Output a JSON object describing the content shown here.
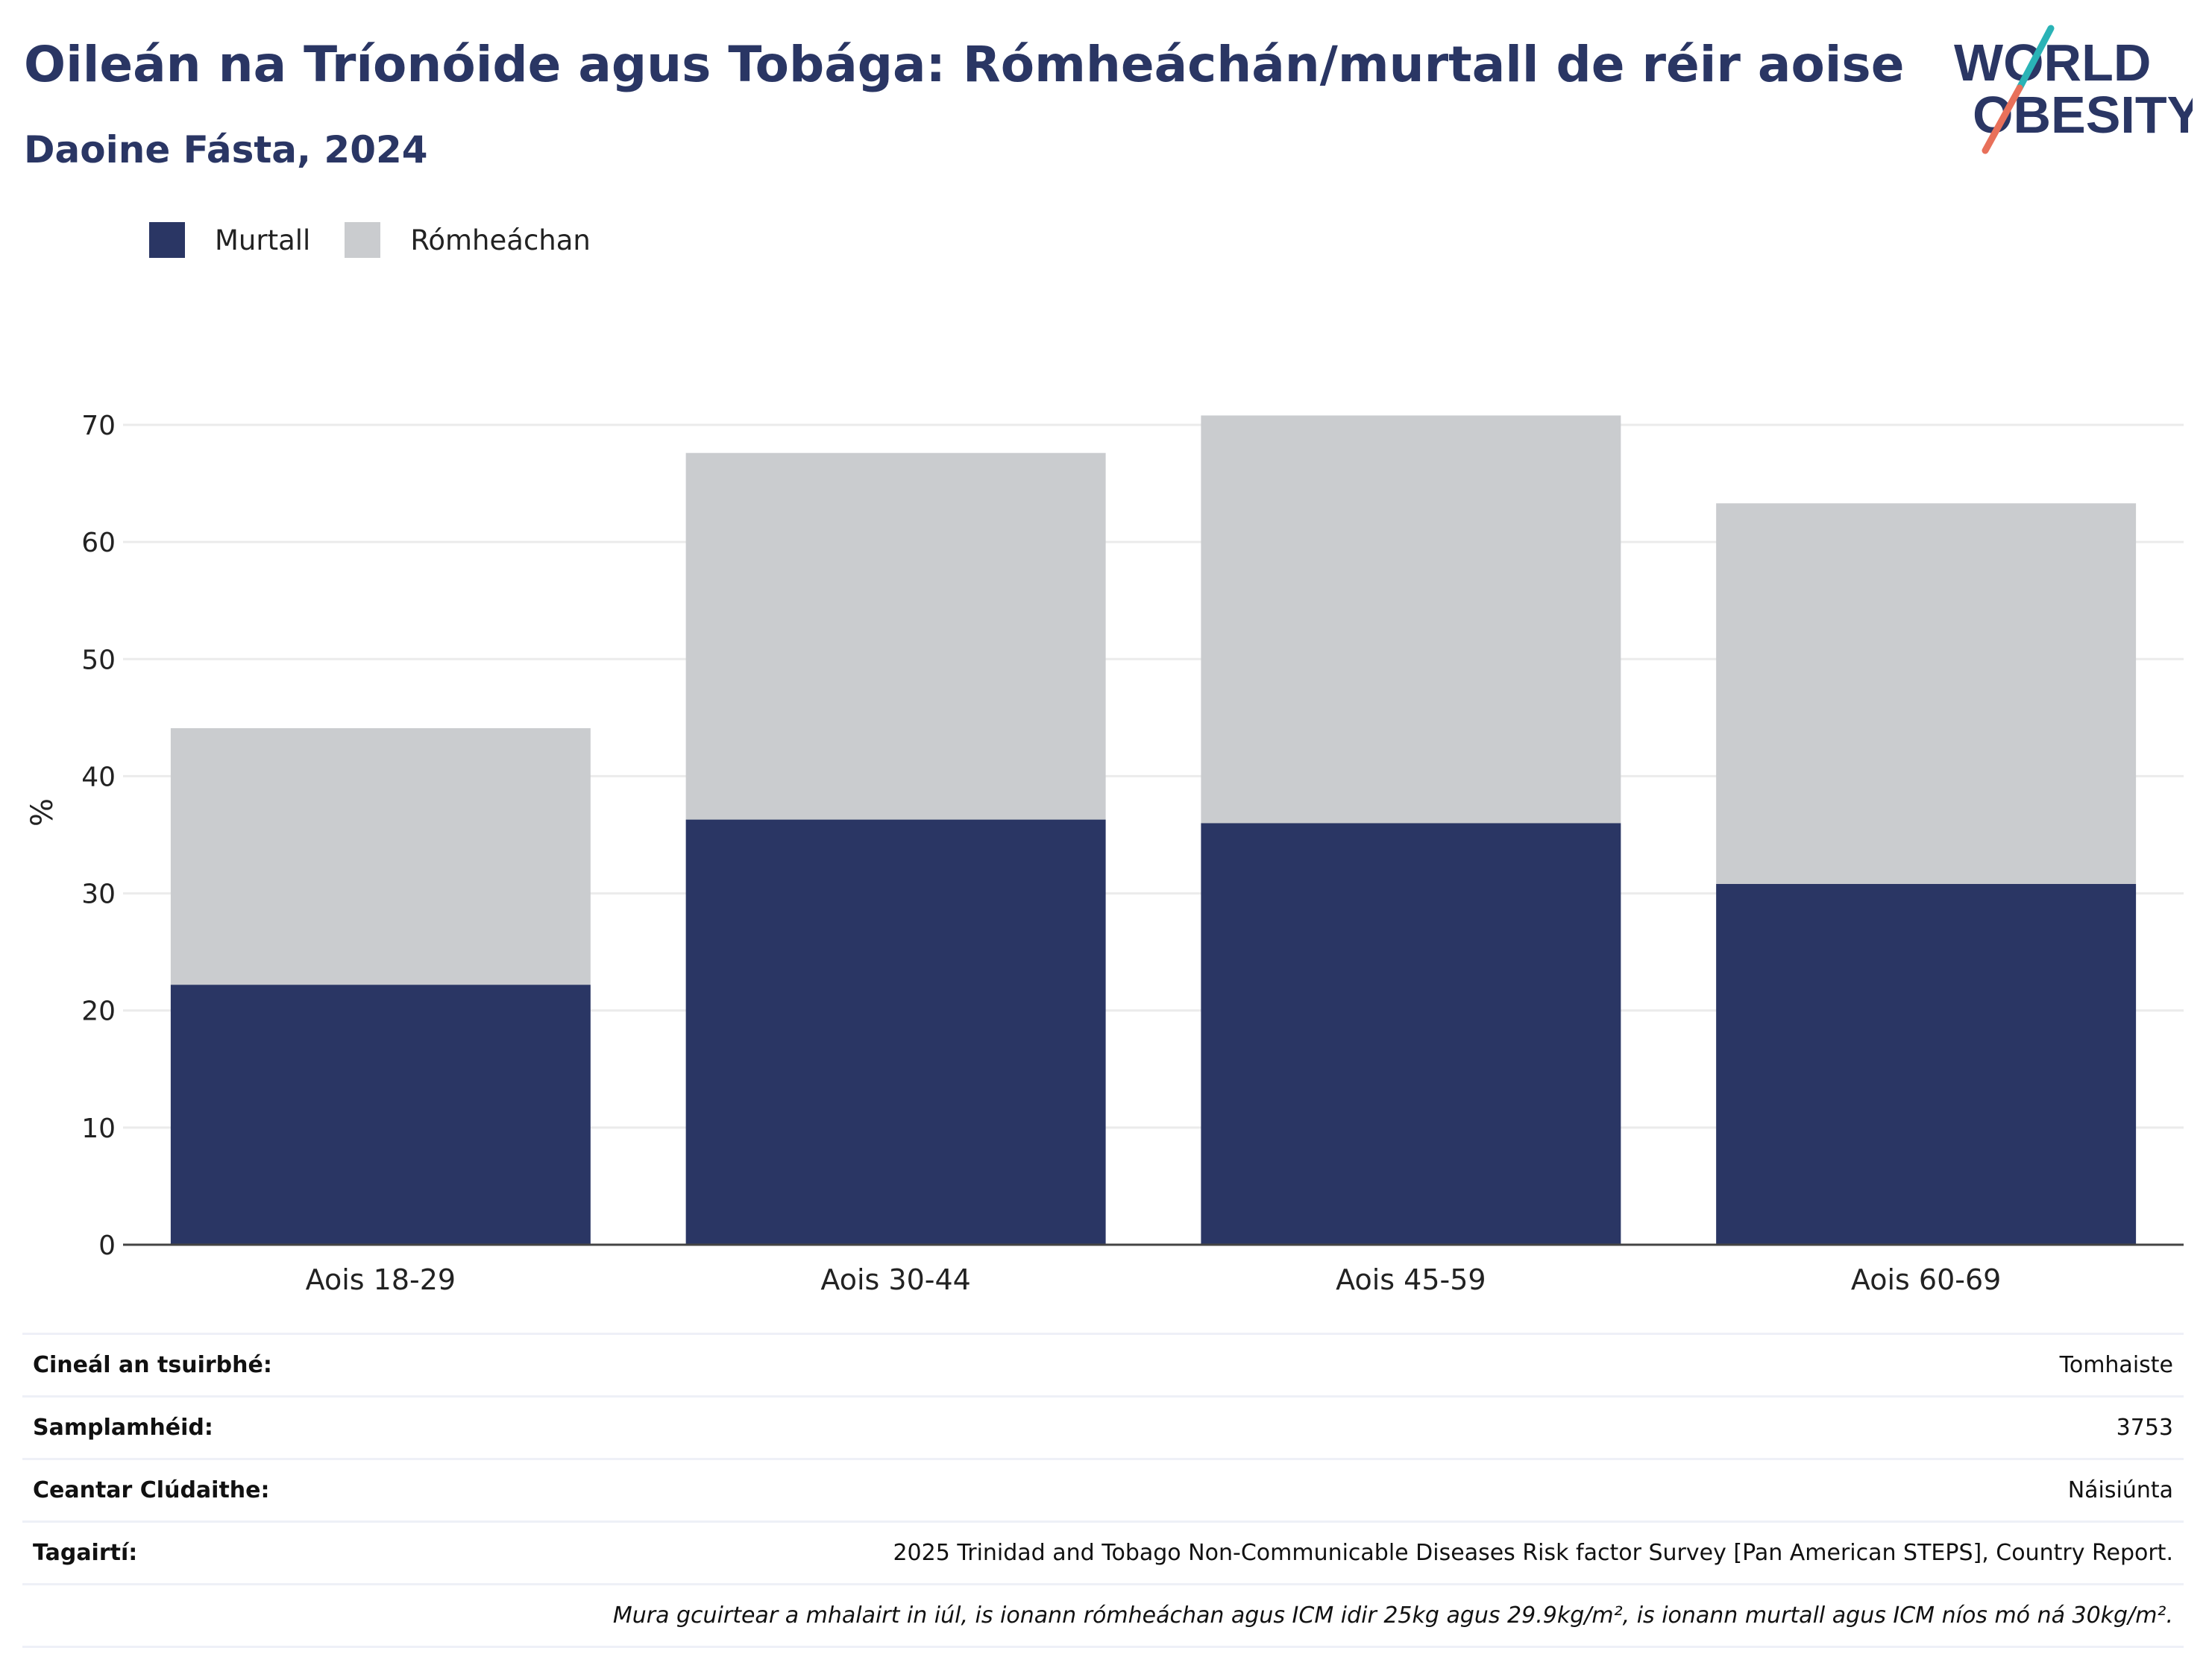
{
  "title": "Oileán na Tríonóide agus Tobága: Rómheáchán/murtall de réir aoise",
  "subtitle": "Daoine Fásta, 2024",
  "logo": {
    "line1": "WORLD",
    "line2": "OBESITY"
  },
  "colors": {
    "obesity": "#2a3664",
    "overweight": "#cacccf",
    "title": "#2a3664",
    "accent_teal": "#2ab3b6",
    "accent_coral": "#e8705a"
  },
  "chart_data": {
    "type": "bar",
    "stacked": true,
    "categories": [
      "Aois 18-29",
      "Aois 30-44",
      "Aois 45-59",
      "Aois 60-69"
    ],
    "series": [
      {
        "name": "Murtall",
        "values": [
          22.2,
          36.3,
          36.0,
          30.8
        ]
      },
      {
        "name": "Rómheáchan",
        "values": [
          21.9,
          31.3,
          34.8,
          32.5
        ]
      }
    ],
    "ylabel": "%",
    "xlabel": "",
    "ylim": [
      0,
      70
    ],
    "yticks": [
      0,
      10,
      20,
      30,
      40,
      50,
      60,
      70
    ],
    "grid": true,
    "legend": "top-left"
  },
  "info": {
    "rows": [
      {
        "label": "Cineál an tsuirbhé:",
        "value": "Tomhaiste"
      },
      {
        "label": "Samplamhéid:",
        "value": "3753"
      },
      {
        "label": "Ceantar Clúdaithe:",
        "value": "Náisiúnta"
      },
      {
        "label": "Tagairtí:",
        "value": "2025 Trinidad and Tobago Non-Communicable Diseases Risk factor Survey [Pan American STEPS], Country Report."
      }
    ],
    "note": "Mura gcuirtear a mhalairt in iúl, is ionann rómheáchan agus ICM idir 25kg agus 29.9kg/m², is ionann murtall agus ICM níos mó ná 30kg/m²."
  }
}
